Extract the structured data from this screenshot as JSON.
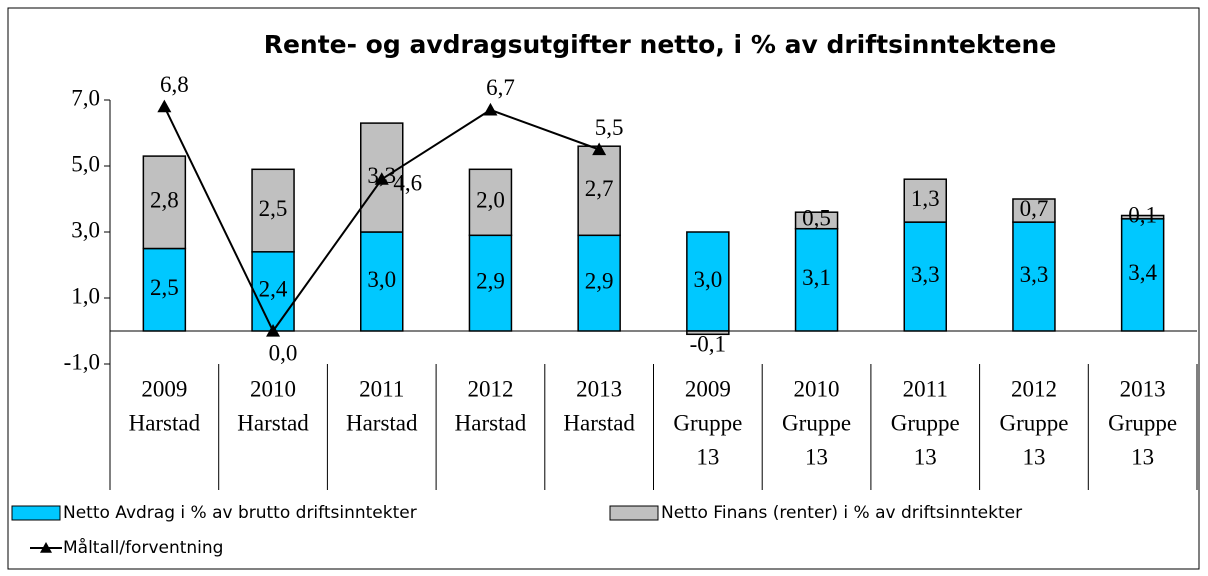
{
  "chart_data": {
    "type": "bar",
    "title": "Rente- og avdragsutgifter netto, i % av driftsinntektene",
    "categories": [
      [
        "2009",
        "Harstad"
      ],
      [
        "2010",
        "Harstad"
      ],
      [
        "2011",
        "Harstad"
      ],
      [
        "2012",
        "Harstad"
      ],
      [
        "2013",
        "Harstad"
      ],
      [
        "2009",
        "Gruppe",
        "13"
      ],
      [
        "2010",
        "Gruppe",
        "13"
      ],
      [
        "2011",
        "Gruppe",
        "13"
      ],
      [
        "2012",
        "Gruppe",
        "13"
      ],
      [
        "2013",
        "Gruppe",
        "13"
      ]
    ],
    "stacked": true,
    "series": [
      {
        "name": "Netto Avdrag i % av brutto driftsinntekter",
        "color": "#00c8ff",
        "values": [
          2.5,
          2.4,
          3.0,
          2.9,
          2.9,
          3.0,
          3.1,
          3.3,
          3.3,
          3.4
        ],
        "value_labels": [
          "2,5",
          "2,4",
          "3,0",
          "2,9",
          "2,9",
          "3,0",
          "3,1",
          "3,3",
          "3,3",
          "3,4"
        ]
      },
      {
        "name": "Netto Finans (renter)  i % av driftsinntekter",
        "color": "#c0c0c0",
        "values": [
          2.8,
          2.5,
          3.3,
          2.0,
          2.7,
          -0.1,
          0.5,
          1.3,
          0.7,
          0.1
        ],
        "value_labels": [
          "2,8",
          "2,5",
          "3,3",
          "2,0",
          "2,7",
          "-0,1",
          "0,5",
          "1,3",
          "0,7",
          "0,1"
        ]
      },
      {
        "name": "Måltall/forventning",
        "type": "line",
        "color": "#000000",
        "values": [
          6.8,
          0.0,
          4.6,
          6.7,
          5.5,
          null,
          null,
          null,
          null,
          null
        ],
        "value_labels": [
          "6,8",
          "0,0",
          "4,6",
          "6,7",
          "5,5",
          null,
          null,
          null,
          null,
          null
        ]
      }
    ],
    "ylim": [
      -1,
      7
    ],
    "yticks": [
      {
        "value": 7,
        "label": "7,0"
      },
      {
        "value": 5,
        "label": "5,0"
      },
      {
        "value": 3,
        "label": "3,0"
      },
      {
        "value": 1,
        "label": "1,0"
      },
      {
        "value": -1,
        "label": "-1,0"
      }
    ]
  }
}
